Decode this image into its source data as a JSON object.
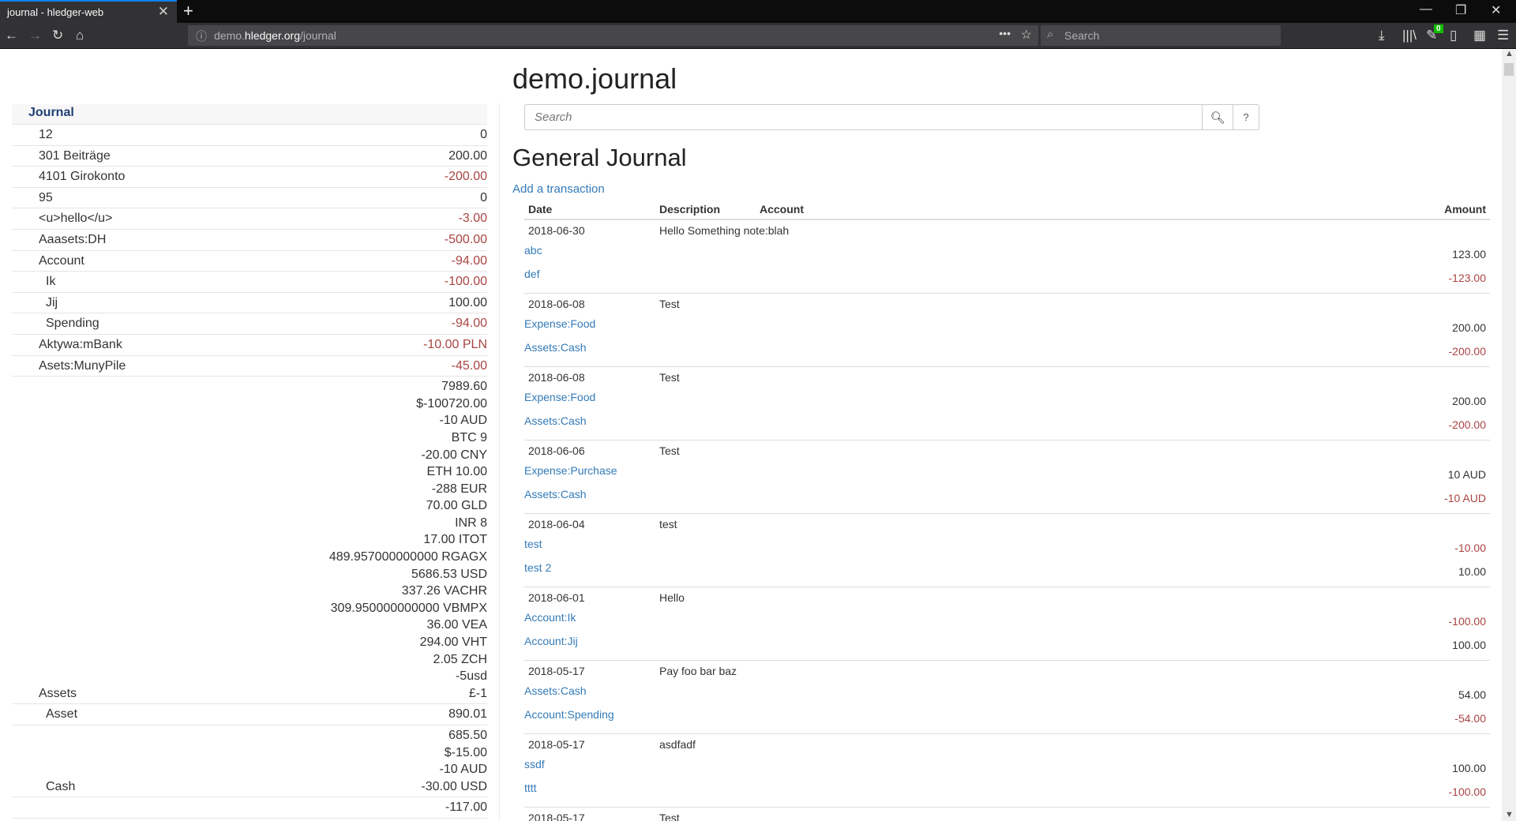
{
  "browser": {
    "tab_title": "journal - hledger-web",
    "url_host": "demo.",
    "url_domain": "hledger.org",
    "url_path": "/journal",
    "search_placeholder": "Search",
    "badge": "0"
  },
  "sidebar": {
    "title": "Journal",
    "rows": [
      {
        "name": "12",
        "indent": 0,
        "neg": false,
        "amounts": [
          "0"
        ]
      },
      {
        "name": "301 Beiträge",
        "indent": 0,
        "neg": false,
        "amounts": [
          "200.00"
        ]
      },
      {
        "name": "4101 Girokonto",
        "indent": 0,
        "neg": true,
        "amounts": [
          "-200.00"
        ]
      },
      {
        "name": "95",
        "indent": 0,
        "neg": false,
        "amounts": [
          "0"
        ]
      },
      {
        "name": "<u>hello</u>",
        "indent": 0,
        "neg": true,
        "amounts": [
          "-3.00"
        ]
      },
      {
        "name": "Aaasets:DH",
        "indent": 0,
        "neg": true,
        "amounts": [
          "-500.00"
        ]
      },
      {
        "name": "Account",
        "indent": 0,
        "neg": true,
        "amounts": [
          "-94.00"
        ]
      },
      {
        "name": "Ik",
        "indent": 1,
        "neg": true,
        "amounts": [
          "-100.00"
        ]
      },
      {
        "name": "Jij",
        "indent": 1,
        "neg": false,
        "amounts": [
          "100.00"
        ]
      },
      {
        "name": "Spending",
        "indent": 1,
        "neg": true,
        "amounts": [
          "-94.00"
        ]
      },
      {
        "name": "Aktywa:mBank",
        "indent": 0,
        "neg": true,
        "amounts": [
          "-10.00 PLN"
        ]
      },
      {
        "name": "Asets:MunyPile",
        "indent": 0,
        "neg": true,
        "amounts": [
          "-45.00"
        ]
      },
      {
        "name": "Assets",
        "indent": 0,
        "neg": false,
        "amounts": [
          "7989.60",
          "$-100720.00",
          "-10 AUD",
          "BTC 9",
          "-20.00 CNY",
          "ETH 10.00",
          "-288 EUR",
          "70.00 GLD",
          "INR 8",
          "17.00 ITOT",
          "489.957000000000 RGAGX",
          "5686.53 USD",
          "337.26 VACHR",
          "309.950000000000 VBMPX",
          "36.00 VEA",
          "294.00 VHT",
          "2.05 ZCH",
          "-5usd",
          "£-1"
        ]
      },
      {
        "name": "Asset",
        "indent": 1,
        "neg": false,
        "amounts": [
          "890.01"
        ]
      },
      {
        "name": "Cash",
        "indent": 1,
        "neg": false,
        "amounts": [
          "685.50",
          "$-15.00",
          "-10 AUD",
          "-30.00 USD"
        ]
      },
      {
        "name": "",
        "indent": 1,
        "neg": false,
        "amounts": [
          "-117.00"
        ]
      }
    ]
  },
  "main": {
    "title": "demo.journal",
    "search_placeholder": "Search",
    "help_label": "?",
    "heading": "General Journal",
    "add_link": "Add a transaction",
    "columns": [
      "Date",
      "Description",
      "Account",
      "Amount"
    ],
    "transactions": [
      {
        "date": "2018-06-30",
        "desc": "Hello Something note:blah",
        "postings": [
          {
            "account": "abc",
            "amount": "123.00",
            "neg": false
          },
          {
            "account": "def",
            "amount": "-123.00",
            "neg": true
          }
        ]
      },
      {
        "date": "2018-06-08",
        "desc": "Test",
        "postings": [
          {
            "account": "Expense:Food",
            "amount": "200.00",
            "neg": false
          },
          {
            "account": "Assets:Cash",
            "amount": "-200.00",
            "neg": true
          }
        ]
      },
      {
        "date": "2018-06-08",
        "desc": "Test",
        "postings": [
          {
            "account": "Expense:Food",
            "amount": "200.00",
            "neg": false
          },
          {
            "account": "Assets:Cash",
            "amount": "-200.00",
            "neg": true
          }
        ]
      },
      {
        "date": "2018-06-06",
        "desc": "Test",
        "postings": [
          {
            "account": "Expense:Purchase",
            "amount": "10 AUD",
            "neg": false
          },
          {
            "account": "Assets:Cash",
            "amount": "-10 AUD",
            "neg": true
          }
        ]
      },
      {
        "date": "2018-06-04",
        "desc": "test",
        "postings": [
          {
            "account": "test",
            "amount": "-10.00",
            "neg": true
          },
          {
            "account": "test 2",
            "amount": "10.00",
            "neg": false
          }
        ]
      },
      {
        "date": "2018-06-01",
        "desc": "Hello",
        "postings": [
          {
            "account": "Account:Ik",
            "amount": "-100.00",
            "neg": true
          },
          {
            "account": "Account:Jij",
            "amount": "100.00",
            "neg": false
          }
        ]
      },
      {
        "date": "2018-05-17",
        "desc": "Pay foo bar baz",
        "postings": [
          {
            "account": "Assets:Cash",
            "amount": "54.00",
            "neg": false
          },
          {
            "account": "Account:Spending",
            "amount": "-54.00",
            "neg": true
          }
        ]
      },
      {
        "date": "2018-05-17",
        "desc": "asdfadf",
        "postings": [
          {
            "account": "ssdf",
            "amount": "100.00",
            "neg": false
          },
          {
            "account": "tttt",
            "amount": "-100.00",
            "neg": true
          }
        ]
      },
      {
        "date": "2018-05-17",
        "desc": "Test",
        "postings": []
      }
    ]
  },
  "colors": {
    "link": "#337ab7",
    "negative": "#a94442",
    "sidebar_title": "#1e3f72",
    "tab_accent": "#0a84ff"
  }
}
